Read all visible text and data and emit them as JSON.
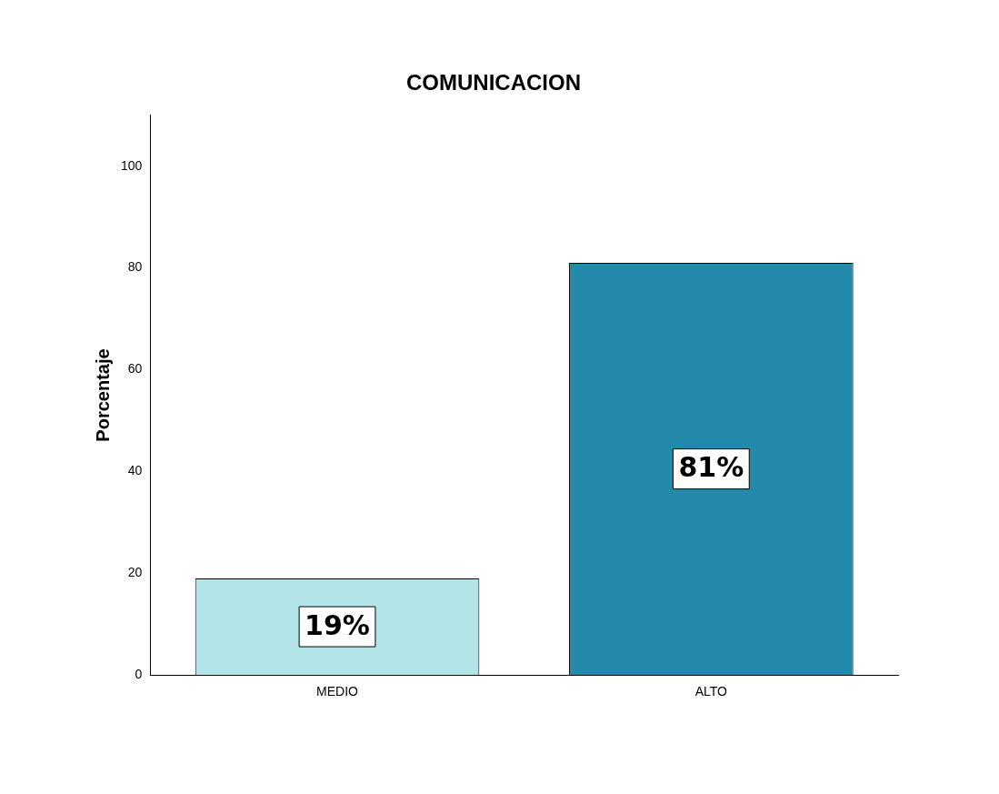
{
  "chart_data": {
    "type": "bar",
    "title": "COMUNICACION",
    "ylabel": "Porcentaje",
    "categories": [
      "MEDIO",
      "ALTO"
    ],
    "values": [
      19,
      81
    ],
    "colors": [
      "#b3e5e8",
      "#248aab"
    ],
    "value_labels": [
      "19%",
      "81%"
    ],
    "ylim": [
      0,
      110
    ],
    "yticks": [
      0,
      20,
      40,
      60,
      80,
      100
    ],
    "grid": false,
    "legend": false
  }
}
